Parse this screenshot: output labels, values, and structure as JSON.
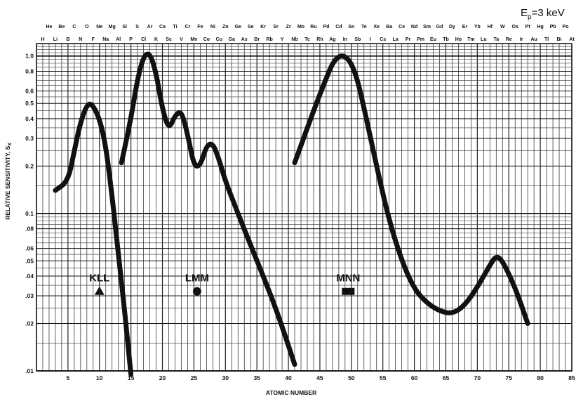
{
  "chart_data": {
    "type": "line",
    "annotation": "Eₑ=3 keV",
    "annotation_text": "E",
    "annotation_sub": "p",
    "annotation_rest": "=3 keV",
    "xlabel": "ATOMIC NUMBER",
    "ylabel": "RELATIVE SENSITIVITY, S",
    "ylabel_sub": "X",
    "xlim": [
      0,
      85
    ],
    "ylim": [
      0.01,
      1.2
    ],
    "yscale": "log",
    "grid": true,
    "x_ticks": [
      5,
      10,
      15,
      20,
      25,
      30,
      35,
      40,
      45,
      50,
      55,
      60,
      65,
      70,
      75,
      80,
      85
    ],
    "x_tick_labels": [
      "5",
      "10",
      "15",
      "20",
      "25",
      "30",
      "35",
      "40",
      "45",
      "50",
      "55",
      "60",
      "65",
      "70",
      "75",
      "80",
      "85"
    ],
    "y_ticks": [
      0.01,
      0.02,
      0.03,
      0.04,
      0.05,
      0.06,
      0.08,
      0.1,
      0.2,
      0.3,
      0.4,
      0.5,
      0.6,
      0.8,
      1.0
    ],
    "y_tick_labels": [
      ".01",
      ".02",
      ".03",
      ".04",
      ".05",
      ".06",
      ".08",
      "0.1",
      "0.2",
      "0.3",
      "0.4",
      "0.5",
      "0.6",
      "0.8",
      "1.0"
    ],
    "elements_top_row": [
      {
        "z": 2,
        "symbol": "He"
      },
      {
        "z": 4,
        "symbol": "Be"
      },
      {
        "z": 6,
        "symbol": "C"
      },
      {
        "z": 8,
        "symbol": "O"
      },
      {
        "z": 10,
        "symbol": "Ne"
      },
      {
        "z": 12,
        "symbol": "Mg"
      },
      {
        "z": 14,
        "symbol": "Si"
      },
      {
        "z": 16,
        "symbol": "S"
      },
      {
        "z": 18,
        "symbol": "Ar"
      },
      {
        "z": 20,
        "symbol": "Ca"
      },
      {
        "z": 22,
        "symbol": "Ti"
      },
      {
        "z": 24,
        "symbol": "Cr"
      },
      {
        "z": 26,
        "symbol": "Fe"
      },
      {
        "z": 28,
        "symbol": "Ni"
      },
      {
        "z": 30,
        "symbol": "Zn"
      },
      {
        "z": 32,
        "symbol": "Ge"
      },
      {
        "z": 34,
        "symbol": "Se"
      },
      {
        "z": 36,
        "symbol": "Kr"
      },
      {
        "z": 38,
        "symbol": "Sr"
      },
      {
        "z": 40,
        "symbol": "Zr"
      },
      {
        "z": 42,
        "symbol": "Mo"
      },
      {
        "z": 44,
        "symbol": "Ru"
      },
      {
        "z": 46,
        "symbol": "Pd"
      },
      {
        "z": 48,
        "symbol": "Cd"
      },
      {
        "z": 50,
        "symbol": "Sn"
      },
      {
        "z": 52,
        "symbol": "Te"
      },
      {
        "z": 54,
        "symbol": "Xe"
      },
      {
        "z": 56,
        "symbol": "Ba"
      },
      {
        "z": 58,
        "symbol": "Ce"
      },
      {
        "z": 60,
        "symbol": "Nd"
      },
      {
        "z": 62,
        "symbol": "Sm"
      },
      {
        "z": 64,
        "symbol": "Gd"
      },
      {
        "z": 66,
        "symbol": "Dy"
      },
      {
        "z": 68,
        "symbol": "Er"
      },
      {
        "z": 70,
        "symbol": "Yb"
      },
      {
        "z": 72,
        "symbol": "Hf"
      },
      {
        "z": 74,
        "symbol": "W"
      },
      {
        "z": 76,
        "symbol": "Os"
      },
      {
        "z": 78,
        "symbol": "Pt"
      },
      {
        "z": 80,
        "symbol": "Hg"
      },
      {
        "z": 82,
        "symbol": "Pb"
      },
      {
        "z": 84,
        "symbol": "Po"
      }
    ],
    "elements_bottom_row": [
      {
        "z": 1,
        "symbol": "H"
      },
      {
        "z": 3,
        "symbol": "Li"
      },
      {
        "z": 5,
        "symbol": "B"
      },
      {
        "z": 7,
        "symbol": "N"
      },
      {
        "z": 9,
        "symbol": "F"
      },
      {
        "z": 11,
        "symbol": "Na"
      },
      {
        "z": 13,
        "symbol": "Al"
      },
      {
        "z": 15,
        "symbol": "P"
      },
      {
        "z": 17,
        "symbol": "Cl"
      },
      {
        "z": 19,
        "symbol": "K"
      },
      {
        "z": 21,
        "symbol": "Sc"
      },
      {
        "z": 23,
        "symbol": "V"
      },
      {
        "z": 25,
        "symbol": "Mn"
      },
      {
        "z": 27,
        "symbol": "Co"
      },
      {
        "z": 29,
        "symbol": "Cu"
      },
      {
        "z": 31,
        "symbol": "Ga"
      },
      {
        "z": 33,
        "symbol": "As"
      },
      {
        "z": 35,
        "symbol": "Br"
      },
      {
        "z": 37,
        "symbol": "Rb"
      },
      {
        "z": 39,
        "symbol": "Y"
      },
      {
        "z": 41,
        "symbol": "Nb"
      },
      {
        "z": 43,
        "symbol": "Tc"
      },
      {
        "z": 45,
        "symbol": "Rh"
      },
      {
        "z": 47,
        "symbol": "Ag"
      },
      {
        "z": 49,
        "symbol": "In"
      },
      {
        "z": 51,
        "symbol": "Sb"
      },
      {
        "z": 53,
        "symbol": "I"
      },
      {
        "z": 55,
        "symbol": "Cs"
      },
      {
        "z": 57,
        "symbol": "La"
      },
      {
        "z": 59,
        "symbol": "Pr"
      },
      {
        "z": 61,
        "symbol": "Pm"
      },
      {
        "z": 63,
        "symbol": "Eu"
      },
      {
        "z": 65,
        "symbol": "Tb"
      },
      {
        "z": 67,
        "symbol": "Ho"
      },
      {
        "z": 69,
        "symbol": "Tm"
      },
      {
        "z": 71,
        "symbol": "Lu"
      },
      {
        "z": 73,
        "symbol": "Ta"
      },
      {
        "z": 75,
        "symbol": "Re"
      },
      {
        "z": 77,
        "symbol": "Ir"
      },
      {
        "z": 79,
        "symbol": "Au"
      },
      {
        "z": 81,
        "symbol": "Tl"
      },
      {
        "z": 83,
        "symbol": "Bi"
      },
      {
        "z": 85,
        "symbol": "At"
      }
    ],
    "series": [
      {
        "name": "KLL",
        "marker": "triangle",
        "label_at": {
          "x": 10.0,
          "y": 0.037
        },
        "marker_at": {
          "x": 10.0,
          "y": 0.032
        },
        "points": [
          {
            "x": 3,
            "y": 0.14
          },
          {
            "x": 5,
            "y": 0.16
          },
          {
            "x": 6,
            "y": 0.25
          },
          {
            "x": 7,
            "y": 0.38
          },
          {
            "x": 8,
            "y": 0.49
          },
          {
            "x": 8.8,
            "y": 0.5
          },
          {
            "x": 10,
            "y": 0.4
          },
          {
            "x": 11,
            "y": 0.27
          },
          {
            "x": 12,
            "y": 0.13
          },
          {
            "x": 13,
            "y": 0.055
          },
          {
            "x": 14,
            "y": 0.024
          },
          {
            "x": 14.6,
            "y": 0.0135
          },
          {
            "x": 15,
            "y": 0.0095
          }
        ]
      },
      {
        "name": "LMM",
        "marker": "circle",
        "label_at": {
          "x": 25.5,
          "y": 0.037
        },
        "marker_at": {
          "x": 25.5,
          "y": 0.032
        },
        "points": [
          {
            "x": 13.5,
            "y": 0.21
          },
          {
            "x": 15,
            "y": 0.4
          },
          {
            "x": 16,
            "y": 0.7
          },
          {
            "x": 17,
            "y": 1.0
          },
          {
            "x": 18,
            "y": 1.05
          },
          {
            "x": 19,
            "y": 0.78
          },
          {
            "x": 20,
            "y": 0.46
          },
          {
            "x": 21,
            "y": 0.34
          },
          {
            "x": 22,
            "y": 0.42
          },
          {
            "x": 23,
            "y": 0.45
          },
          {
            "x": 24,
            "y": 0.32
          },
          {
            "x": 25,
            "y": 0.2
          },
          {
            "x": 26,
            "y": 0.2
          },
          {
            "x": 27,
            "y": 0.27
          },
          {
            "x": 28,
            "y": 0.28
          },
          {
            "x": 29,
            "y": 0.22
          },
          {
            "x": 30,
            "y": 0.16
          },
          {
            "x": 32,
            "y": 0.1
          },
          {
            "x": 34,
            "y": 0.063
          },
          {
            "x": 36,
            "y": 0.04
          },
          {
            "x": 38,
            "y": 0.025
          },
          {
            "x": 40,
            "y": 0.0145
          },
          {
            "x": 41,
            "y": 0.011
          }
        ]
      },
      {
        "name": "MNN",
        "marker": "square",
        "label_at": {
          "x": 49.5,
          "y": 0.037
        },
        "marker_at": {
          "x": 49.5,
          "y": 0.032
        },
        "points": [
          {
            "x": 41,
            "y": 0.21
          },
          {
            "x": 42,
            "y": 0.27
          },
          {
            "x": 44,
            "y": 0.45
          },
          {
            "x": 46,
            "y": 0.72
          },
          {
            "x": 47,
            "y": 0.9
          },
          {
            "x": 48,
            "y": 1.0
          },
          {
            "x": 49,
            "y": 1.0
          },
          {
            "x": 50,
            "y": 0.9
          },
          {
            "x": 51,
            "y": 0.7
          },
          {
            "x": 52,
            "y": 0.47
          },
          {
            "x": 54,
            "y": 0.2
          },
          {
            "x": 56,
            "y": 0.09
          },
          {
            "x": 58,
            "y": 0.05
          },
          {
            "x": 60,
            "y": 0.033
          },
          {
            "x": 62,
            "y": 0.027
          },
          {
            "x": 64,
            "y": 0.024
          },
          {
            "x": 66,
            "y": 0.023
          },
          {
            "x": 68,
            "y": 0.026
          },
          {
            "x": 70,
            "y": 0.034
          },
          {
            "x": 72,
            "y": 0.047
          },
          {
            "x": 73,
            "y": 0.054
          },
          {
            "x": 74,
            "y": 0.05
          },
          {
            "x": 76,
            "y": 0.034
          },
          {
            "x": 78,
            "y": 0.02
          }
        ]
      }
    ]
  }
}
